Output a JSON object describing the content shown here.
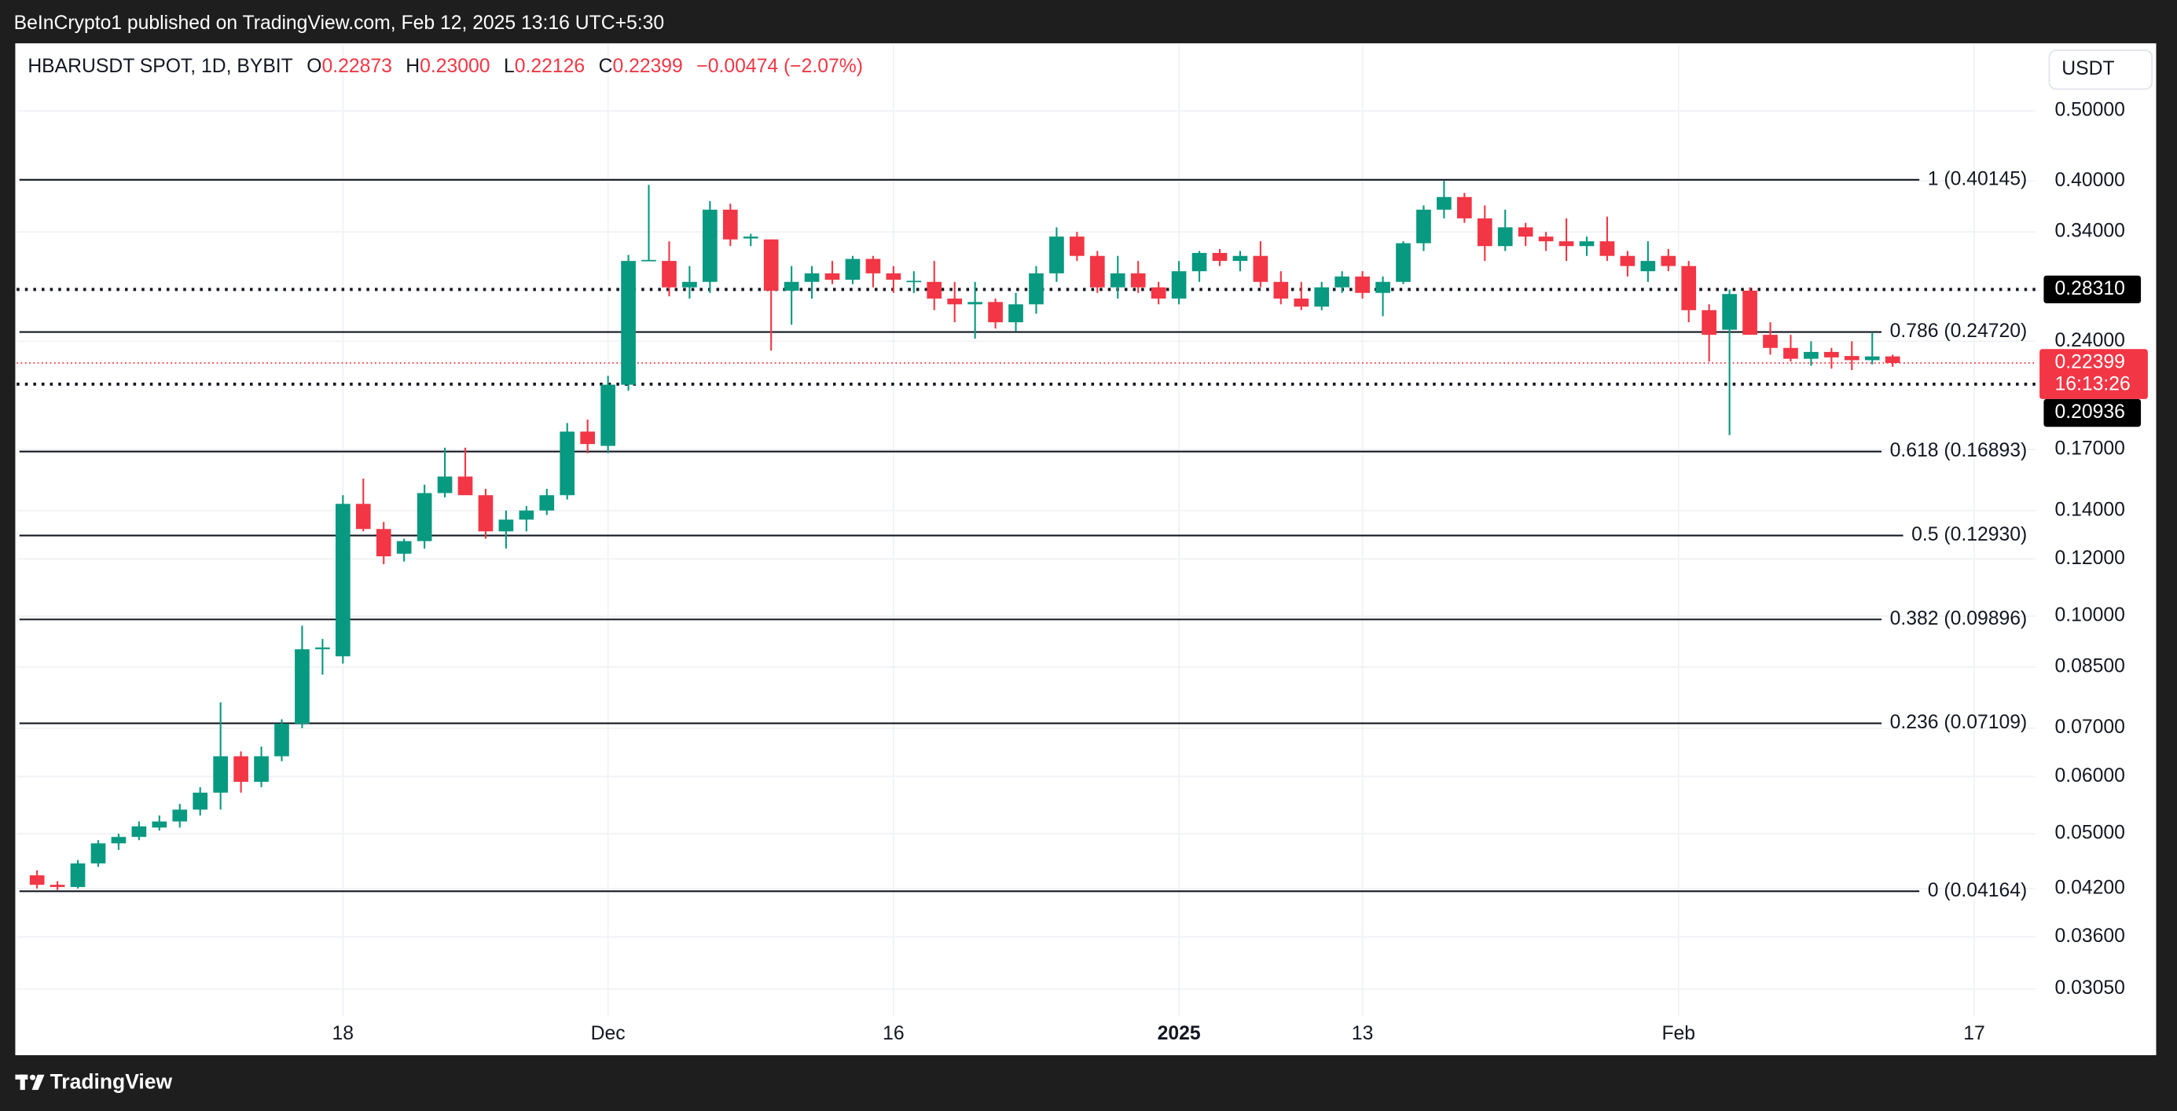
{
  "header": {
    "published": "BeInCrypto1 published on TradingView.com, Feb 12, 2025 13:16 UTC+5:30"
  },
  "footer": {
    "brand": "TradingView"
  },
  "chart_data": {
    "type": "candlestick",
    "title": "HBARUSDT SPOT, 1D, BYBIT",
    "ohlc_legend": [
      {
        "key": "O",
        "value": "0.22873"
      },
      {
        "key": "H",
        "value": "0.23000"
      },
      {
        "key": "L",
        "value": "0.22126"
      },
      {
        "key": "C",
        "value": "0.22399"
      }
    ],
    "change": "−0.00474 (−2.07%)",
    "currency": "USDT",
    "up_color": "#089981",
    "down_color": "#f23645",
    "grid": true,
    "log_scale": true,
    "xlim": [
      -1,
      98
    ],
    "xticks": [
      {
        "value": 15,
        "label": "18"
      },
      {
        "value": 28,
        "label": "Dec"
      },
      {
        "value": 42,
        "label": "16"
      },
      {
        "value": 56,
        "label": "2025"
      },
      {
        "value": 65,
        "label": "13"
      },
      {
        "value": 80.5,
        "label": "Feb"
      },
      {
        "value": 95,
        "label": "17"
      }
    ],
    "ylim": [
      0.0247,
      0.62
    ],
    "yticks": [
      {
        "value": 0.5,
        "label": "0.50000"
      },
      {
        "value": 0.4,
        "label": "0.40000"
      },
      {
        "value": 0.34,
        "label": "0.34000"
      },
      {
        "value": 0.24,
        "label": "0.24000"
      },
      {
        "value": 0.17,
        "label": "0.17000"
      },
      {
        "value": 0.14,
        "label": "0.14000"
      },
      {
        "value": 0.12,
        "label": "0.12000"
      },
      {
        "value": 0.1,
        "label": "0.10000"
      },
      {
        "value": 0.085,
        "label": "0.08500"
      },
      {
        "value": 0.07,
        "label": "0.07000"
      },
      {
        "value": 0.06,
        "label": "0.06000"
      },
      {
        "value": 0.05,
        "label": "0.05000"
      },
      {
        "value": 0.042,
        "label": "0.04200"
      },
      {
        "value": 0.036,
        "label": "0.03600"
      },
      {
        "value": 0.0305,
        "label": "0.03050"
      }
    ],
    "open": [
      0.0438,
      0.0425,
      0.0422,
      0.0455,
      0.0485,
      0.0495,
      0.051,
      0.052,
      0.054,
      0.057,
      0.064,
      0.059,
      0.064,
      0.071,
      0.09,
      0.088,
      0.143,
      0.132,
      0.122,
      0.127,
      0.148,
      0.156,
      0.147,
      0.131,
      0.136,
      0.14,
      0.147,
      0.18,
      0.172,
      0.209,
      0.31,
      0.31,
      0.285,
      0.29,
      0.365,
      0.333,
      0.332,
      0.282,
      0.29,
      0.298,
      0.292,
      0.312,
      0.298,
      0.29,
      0.29,
      0.275,
      0.27,
      0.272,
      0.255,
      0.27,
      0.298,
      0.335,
      0.315,
      0.285,
      0.298,
      0.285,
      0.275,
      0.3,
      0.318,
      0.31,
      0.315,
      0.29,
      0.275,
      0.268,
      0.285,
      0.295,
      0.28,
      0.29,
      0.328,
      0.365,
      0.38,
      0.355,
      0.325,
      0.345,
      0.335,
      0.33,
      0.325,
      0.33,
      0.315,
      0.3,
      0.315,
      0.305,
      0.265,
      0.249,
      0.282,
      0.245,
      0.235,
      0.227,
      0.232,
      0.229,
      0.226,
      0.22873
    ],
    "high": [
      0.0445,
      0.043,
      0.046,
      0.049,
      0.05,
      0.052,
      0.053,
      0.055,
      0.058,
      0.076,
      0.065,
      0.066,
      0.072,
      0.097,
      0.093,
      0.147,
      0.155,
      0.135,
      0.128,
      0.152,
      0.171,
      0.171,
      0.15,
      0.14,
      0.142,
      0.15,
      0.185,
      0.187,
      0.215,
      0.316,
      0.395,
      0.33,
      0.305,
      0.375,
      0.372,
      0.338,
      0.332,
      0.305,
      0.305,
      0.31,
      0.315,
      0.315,
      0.305,
      0.3,
      0.31,
      0.29,
      0.29,
      0.275,
      0.28,
      0.305,
      0.345,
      0.34,
      0.32,
      0.315,
      0.31,
      0.29,
      0.31,
      0.32,
      0.322,
      0.32,
      0.33,
      0.3,
      0.29,
      0.29,
      0.3,
      0.3,
      0.295,
      0.33,
      0.37,
      0.4,
      0.385,
      0.37,
      0.365,
      0.35,
      0.34,
      0.355,
      0.335,
      0.357,
      0.32,
      0.33,
      0.322,
      0.31,
      0.27,
      0.283,
      0.285,
      0.255,
      0.245,
      0.24,
      0.235,
      0.24,
      0.247,
      0.23
    ],
    "low": [
      0.042,
      0.0418,
      0.042,
      0.045,
      0.0475,
      0.049,
      0.0505,
      0.051,
      0.053,
      0.054,
      0.057,
      0.058,
      0.063,
      0.07,
      0.083,
      0.086,
      0.131,
      0.118,
      0.119,
      0.124,
      0.146,
      0.148,
      0.128,
      0.124,
      0.131,
      0.138,
      0.145,
      0.168,
      0.168,
      0.205,
      0.31,
      0.277,
      0.275,
      0.28,
      0.325,
      0.325,
      0.233,
      0.253,
      0.275,
      0.288,
      0.288,
      0.285,
      0.28,
      0.28,
      0.265,
      0.255,
      0.242,
      0.25,
      0.248,
      0.262,
      0.29,
      0.31,
      0.28,
      0.275,
      0.28,
      0.27,
      0.27,
      0.29,
      0.305,
      0.3,
      0.285,
      0.27,
      0.265,
      0.265,
      0.28,
      0.275,
      0.26,
      0.288,
      0.32,
      0.355,
      0.35,
      0.31,
      0.32,
      0.325,
      0.32,
      0.31,
      0.315,
      0.31,
      0.295,
      0.29,
      0.3,
      0.255,
      0.225,
      0.178,
      0.25,
      0.23,
      0.225,
      0.222,
      0.22,
      0.219,
      0.223,
      0.22126
    ],
    "close": [
      0.0425,
      0.0422,
      0.0455,
      0.0485,
      0.0495,
      0.0512,
      0.052,
      0.054,
      0.057,
      0.064,
      0.059,
      0.064,
      0.071,
      0.09,
      0.0905,
      0.143,
      0.132,
      0.121,
      0.127,
      0.148,
      0.156,
      0.147,
      0.131,
      0.136,
      0.14,
      0.147,
      0.18,
      0.173,
      0.209,
      0.31,
      0.311,
      0.285,
      0.29,
      0.365,
      0.332,
      0.335,
      0.282,
      0.29,
      0.298,
      0.292,
      0.312,
      0.298,
      0.292,
      0.291,
      0.275,
      0.27,
      0.272,
      0.255,
      0.27,
      0.298,
      0.335,
      0.315,
      0.285,
      0.298,
      0.285,
      0.275,
      0.3,
      0.318,
      0.31,
      0.315,
      0.29,
      0.275,
      0.268,
      0.285,
      0.295,
      0.28,
      0.29,
      0.328,
      0.365,
      0.38,
      0.355,
      0.325,
      0.345,
      0.335,
      0.33,
      0.325,
      0.33,
      0.315,
      0.305,
      0.31,
      0.305,
      0.265,
      0.245,
      0.279,
      0.245,
      0.235,
      0.227,
      0.232,
      0.228,
      0.226,
      0.2287,
      0.22399
    ],
    "fib_levels": [
      {
        "value": 0.40145,
        "label": "1 (0.40145)"
      },
      {
        "value": 0.2472,
        "label": "0.786 (0.24720)"
      },
      {
        "value": 0.16893,
        "label": "0.618 (0.16893)"
      },
      {
        "value": 0.1293,
        "label": "0.5 (0.12930)"
      },
      {
        "value": 0.09896,
        "label": "0.382 (0.09896)"
      },
      {
        "value": 0.07109,
        "label": "0.236 (0.07109)"
      },
      {
        "value": 0.04164,
        "label": "0 (0.04164)"
      }
    ],
    "levels": [
      {
        "value": 0.2831,
        "label": "0.28310"
      },
      {
        "value": 0.20936,
        "label": "0.20936"
      }
    ],
    "last_price": 0.22399,
    "countdown": "16:13:26"
  }
}
